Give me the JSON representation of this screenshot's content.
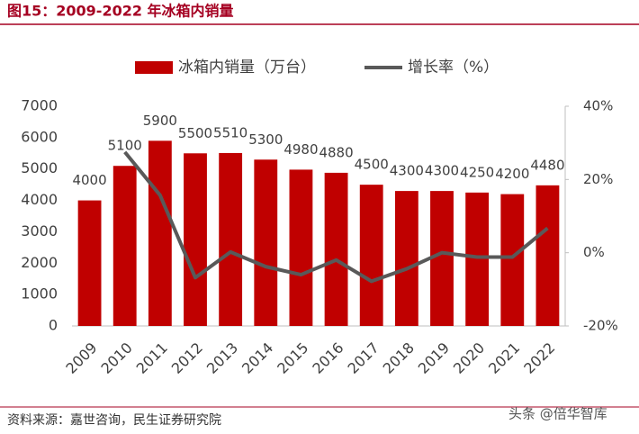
{
  "chart_data": {
    "type": "bar",
    "title": "图15：2009-2022 年冰箱内销量",
    "source": "资料来源：嘉世咨询，民生证券研究院",
    "watermark": "头条 @倍华智库",
    "categories": [
      "2009",
      "2010",
      "2011",
      "2012",
      "2013",
      "2014",
      "2015",
      "2016",
      "2017",
      "2018",
      "2019",
      "2020",
      "2021",
      "2022"
    ],
    "series": [
      {
        "name": "冰箱内销量（万台）",
        "type": "bar",
        "color": "#c00000",
        "values": [
          4000,
          5100,
          5900,
          5500,
          5510,
          5300,
          4980,
          4880,
          4500,
          4300,
          4300,
          4250,
          4200,
          4480
        ]
      },
      {
        "name": "增长率（%）",
        "type": "line",
        "axis": "y2",
        "color": "#595959",
        "values": [
          null,
          27.5,
          15.7,
          -6.8,
          0.2,
          -3.8,
          -6.0,
          -2.0,
          -7.8,
          -4.4,
          0,
          -1.2,
          -1.2,
          6.7
        ]
      }
    ],
    "ylim": [
      0,
      7000
    ],
    "yticks": [
      0,
      1000,
      2000,
      3000,
      4000,
      5000,
      6000,
      7000
    ],
    "y2lim": [
      -20,
      40
    ],
    "y2ticks": [
      {
        "value": -20,
        "label": "-20%"
      },
      {
        "value": 0,
        "label": "0%"
      },
      {
        "value": 20,
        "label": "20%"
      },
      {
        "value": 40,
        "label": "40%"
      }
    ],
    "grid": false
  }
}
